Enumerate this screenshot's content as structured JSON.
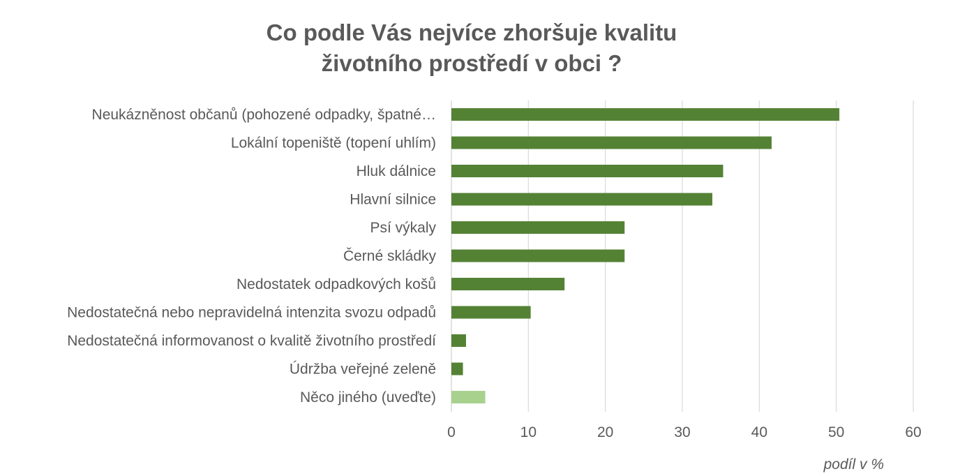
{
  "chart_data": {
    "type": "bar",
    "orientation": "horizontal",
    "title_lines": [
      "Co podle Vás nejvíce zhoršuje kvalitu",
      "životního prostředí v obci ?"
    ],
    "xlabel": "podíl v %",
    "ylabel": "",
    "xlim": [
      0,
      60
    ],
    "x_ticks": [
      "0",
      "10",
      "20",
      "30",
      "40",
      "50",
      "60"
    ],
    "grid": "vertical",
    "legend": "none",
    "categories": [
      "Neukázněnost občanů (pohozené odpadky, špatné…",
      "Lokální topeniště (topení uhlím)",
      "Hluk dálnice",
      "Hlavní silnice",
      "Psí výkaly",
      "Černé skládky",
      "Nedostatek odpadkových košů",
      "Nedostatečná nebo nepravidelná intenzita svozu odpadů",
      "Nedostatečná informovanost o kvalitě životního prostředí",
      "Údržba veřejné zeleně",
      "Něco jiného (uveďte)"
    ],
    "values": [
      50.4,
      41.6,
      35.3,
      33.9,
      22.5,
      22.5,
      14.7,
      10.3,
      1.9,
      1.5,
      4.4
    ],
    "colors": {
      "main": "#548235",
      "other": "#a9d18e",
      "grid": "#d9d9d9",
      "text": "#595959"
    },
    "bar_colors": [
      "main",
      "main",
      "main",
      "main",
      "main",
      "main",
      "main",
      "main",
      "main",
      "main",
      "other"
    ]
  }
}
